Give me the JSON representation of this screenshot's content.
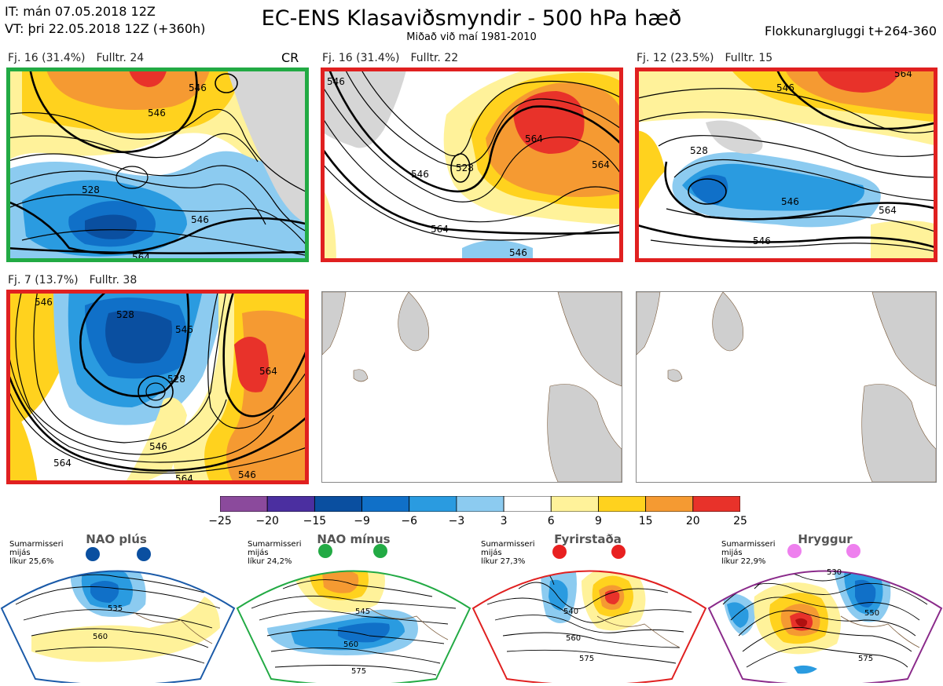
{
  "header": {
    "it_line": "IT: mán 07.05.2018 12Z",
    "vt_line": "VT: þri 22.05.2018 12Z  (+360h)",
    "title": "EC-ENS Klasaviðsmyndir - 500 hPa hæð",
    "subtitle": "Miðað við maí 1981-2010",
    "window": "Flokkunargluggi t+264-360"
  },
  "panels": [
    {
      "label_count": "Fj. 16 (31.4%)",
      "label_member": "Fulltr. 24",
      "tag": "CR",
      "border": "#22aa44",
      "contours": [
        "546",
        "546",
        "528",
        "546",
        "564"
      ]
    },
    {
      "label_count": "Fj. 16 (31.4%)",
      "label_member": "Fulltr. 22",
      "tag": "",
      "border": "#e02020",
      "contours": [
        "546",
        "564",
        "546",
        "528",
        "564",
        "564",
        "546"
      ]
    },
    {
      "label_count": "Fj. 12 (23.5%)",
      "label_member": "Fulltr. 15",
      "tag": "",
      "border": "#e02020",
      "contours": [
        "546",
        "564",
        "528",
        "546",
        "564",
        "546"
      ]
    },
    {
      "label_count": "Fj. 7 (13.7%)",
      "label_member": "Fulltr. 38",
      "tag": "",
      "border": "#e02020",
      "contours": [
        "546",
        "528",
        "546",
        "528",
        "564",
        "546",
        "564",
        "564",
        "546"
      ]
    }
  ],
  "colorbar": {
    "ticks": [
      "−25",
      "−20",
      "−15",
      "−9",
      "−6",
      "−3",
      "3",
      "6",
      "9",
      "15",
      "20",
      "25"
    ],
    "colors": [
      "#8b4a9c",
      "#4b2fa0",
      "#0a4fa0",
      "#1070c8",
      "#2a9be0",
      "#8ccbf0",
      "#ffffff",
      "#fff29a",
      "#ffd21e",
      "#f59a32",
      "#e8322a",
      "#b01010"
    ]
  },
  "regimes": [
    {
      "name": "NAO plús",
      "info": [
        "Sumarmisseri",
        "mijás",
        "líkur 25,6%"
      ],
      "outline": "#1a5aa8",
      "dot": "#0a4fa0",
      "contours": [
        "535",
        "560"
      ]
    },
    {
      "name": "NAO mínus",
      "info": [
        "Sumarmisseri",
        "mijás",
        "líkur 24,2%"
      ],
      "outline": "#22aa44",
      "dot": "#22aa44",
      "contours": [
        "545",
        "560",
        "575"
      ]
    },
    {
      "name": "Fyrirstaða",
      "info": [
        "Sumarmisseri",
        "mijás",
        "líkur 27,3%"
      ],
      "outline": "#e02020",
      "dot": "#e82020",
      "contours": [
        "540",
        "560",
        "575"
      ]
    },
    {
      "name": "Hryggur",
      "info": [
        "Sumarmisseri",
        "mijás",
        "líkur 22,9%"
      ],
      "outline": "#8a2a8a",
      "dot": "#ee80ee",
      "contours": [
        "530",
        "550",
        "575"
      ]
    }
  ]
}
